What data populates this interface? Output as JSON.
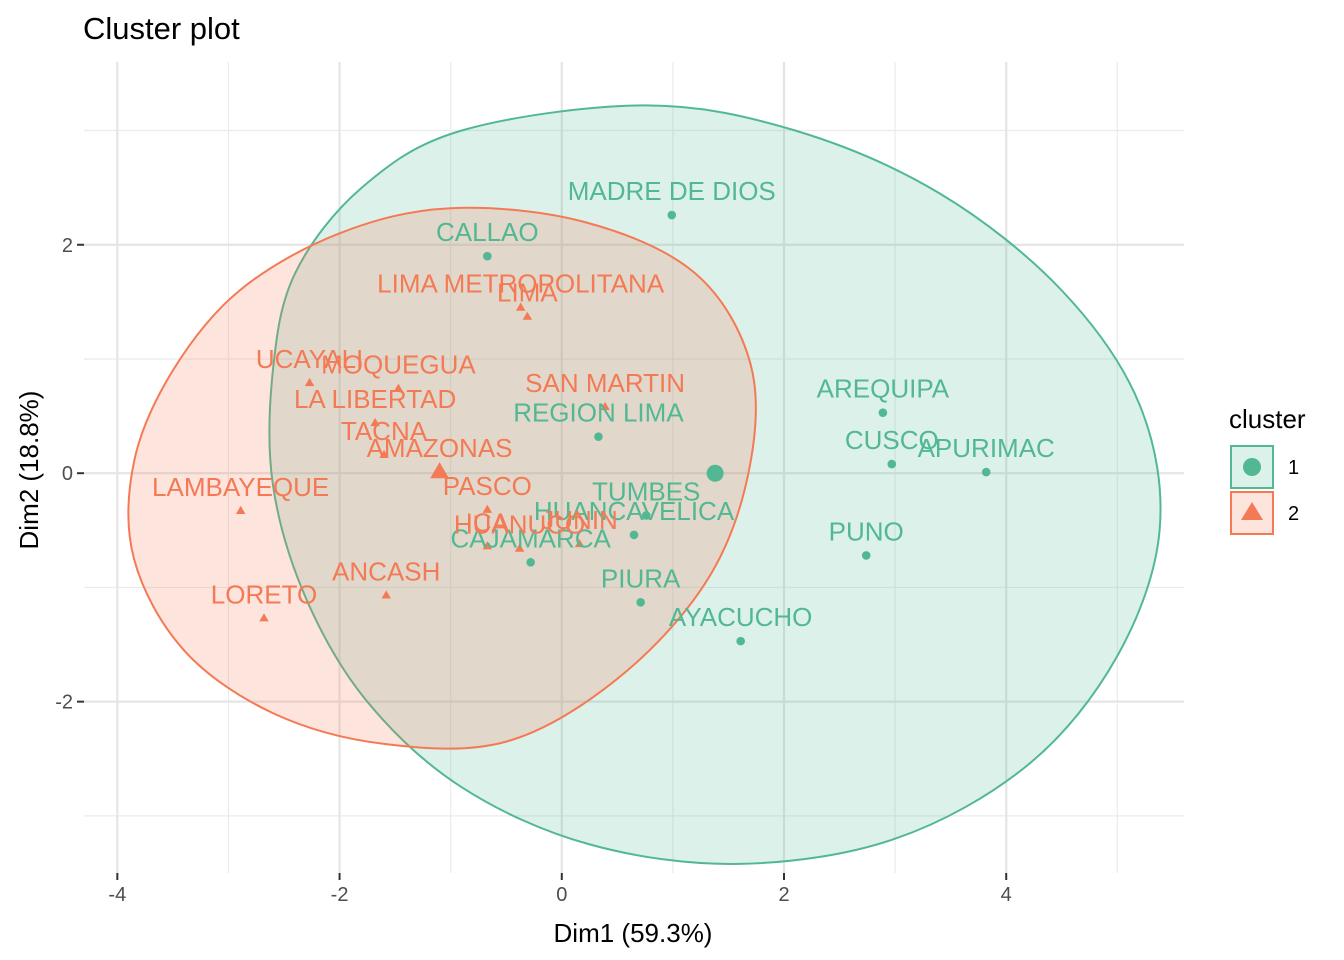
{
  "chart_data": {
    "type": "scatter",
    "title": "Cluster plot",
    "xlabel": "Dim1 (59.3%)",
    "ylabel": "Dim2 (18.8%)",
    "xlim": [
      -4.3,
      5.6
    ],
    "ylim": [
      -3.5,
      3.6
    ],
    "x_ticks": [
      -4,
      -2,
      0,
      2,
      4
    ],
    "y_ticks": [
      -2,
      0,
      2
    ],
    "grid": true,
    "legend": {
      "title": "cluster",
      "position": "right"
    },
    "series": [
      {
        "name": "1",
        "color": "#52B893",
        "marker": "circle",
        "centroid": [
          1.38,
          0.0
        ],
        "points": [
          {
            "label": "MADRE DE DIOS",
            "x": 0.99,
            "y": 2.26
          },
          {
            "label": "CALLAO",
            "x": -0.67,
            "y": 1.9
          },
          {
            "label": "REGION LIMA",
            "x": 0.33,
            "y": 0.32
          },
          {
            "label": "AREQUIPA",
            "x": 2.89,
            "y": 0.53
          },
          {
            "label": "CUSCO",
            "x": 2.97,
            "y": 0.08
          },
          {
            "label": "APURIMAC",
            "x": 3.82,
            "y": 0.01
          },
          {
            "label": "TUMBES",
            "x": 0.76,
            "y": -0.37
          },
          {
            "label": "HUANCAVELICA",
            "x": 0.65,
            "y": -0.54
          },
          {
            "label": "CAJAMARCA",
            "x": -0.28,
            "y": -0.78
          },
          {
            "label": "PUNO",
            "x": 2.74,
            "y": -0.72
          },
          {
            "label": "PIURA",
            "x": 0.71,
            "y": -1.13
          },
          {
            "label": "AYACUCHO",
            "x": 1.61,
            "y": -1.47
          }
        ],
        "ellipse_polygon": [
          [
            0.75,
            3.22
          ],
          [
            2.1,
            3.0
          ],
          [
            3.4,
            2.45
          ],
          [
            4.5,
            1.6
          ],
          [
            5.2,
            0.6
          ],
          [
            5.38,
            -0.5
          ],
          [
            5.0,
            -1.6
          ],
          [
            4.2,
            -2.55
          ],
          [
            3.0,
            -3.2
          ],
          [
            1.6,
            -3.42
          ],
          [
            0.25,
            -3.25
          ],
          [
            -0.9,
            -2.75
          ],
          [
            -1.75,
            -2.0
          ],
          [
            -2.3,
            -1.1
          ],
          [
            -2.6,
            -0.1
          ],
          [
            -2.6,
            0.9
          ],
          [
            -2.4,
            1.75
          ],
          [
            -1.8,
            2.5
          ],
          [
            -0.9,
            3.0
          ]
        ]
      },
      {
        "name": "2",
        "color": "#F47A55",
        "marker": "triangle",
        "centroid": [
          -1.1,
          0.01
        ],
        "points": [
          {
            "label": "LIMA METROPOLITANA",
            "x": -0.37,
            "y": 1.45
          },
          {
            "label": "LIMA",
            "x": -0.31,
            "y": 1.37
          },
          {
            "label": "UCAYALI",
            "x": -2.27,
            "y": 0.79
          },
          {
            "label": "MOQUEGUA",
            "x": -1.47,
            "y": 0.74
          },
          {
            "label": "LA LIBERTAD",
            "x": -1.68,
            "y": 0.44
          },
          {
            "label": "SAN MARTIN",
            "x": 0.39,
            "y": 0.58
          },
          {
            "label": "TACNA",
            "x": -1.6,
            "y": 0.16
          },
          {
            "label": "AMAZONAS",
            "x": -1.1,
            "y": 0.01
          },
          {
            "label": "LAMBAYEQUE",
            "x": -2.89,
            "y": -0.33
          },
          {
            "label": "PASCO",
            "x": -0.67,
            "y": -0.32
          },
          {
            "label": "ICA",
            "x": -0.67,
            "y": -0.64
          },
          {
            "label": "HUANUCO",
            "x": -0.38,
            "y": -0.66
          },
          {
            "label": "JUNIN",
            "x": 0.16,
            "y": -0.62
          },
          {
            "label": "ANCASH",
            "x": -1.58,
            "y": -1.07
          },
          {
            "label": "LORETO",
            "x": -2.68,
            "y": -1.27
          }
        ],
        "ellipse_polygon": [
          [
            -1.0,
            2.32
          ],
          [
            0.2,
            2.2
          ],
          [
            1.2,
            1.75
          ],
          [
            1.7,
            0.95
          ],
          [
            1.68,
            0.0
          ],
          [
            1.3,
            -0.95
          ],
          [
            0.5,
            -1.8
          ],
          [
            -0.5,
            -2.35
          ],
          [
            -1.6,
            -2.37
          ],
          [
            -2.6,
            -2.1
          ],
          [
            -3.4,
            -1.55
          ],
          [
            -3.85,
            -0.75
          ],
          [
            -3.85,
            0.1
          ],
          [
            -3.5,
            0.9
          ],
          [
            -2.9,
            1.6
          ],
          [
            -2.0,
            2.1
          ]
        ]
      }
    ]
  }
}
